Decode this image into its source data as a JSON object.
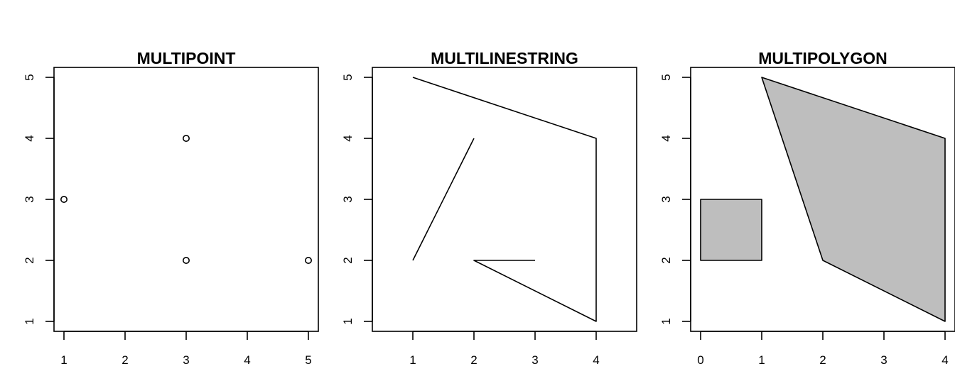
{
  "chart_data": [
    {
      "type": "scatter",
      "title": "MULTIPOINT",
      "xlim": [
        1,
        5
      ],
      "ylim": [
        1,
        5
      ],
      "xticks": [
        "1",
        "2",
        "3",
        "4",
        "5"
      ],
      "yticks": [
        "1",
        "2",
        "3",
        "4",
        "5"
      ],
      "points": [
        [
          1,
          3
        ],
        [
          3,
          4
        ],
        [
          3,
          2
        ],
        [
          5,
          2
        ]
      ]
    },
    {
      "type": "line",
      "title": "MULTILINESTRING",
      "xlim": [
        1,
        4
      ],
      "ylim": [
        1,
        5
      ],
      "xticks": [
        "1",
        "2",
        "3",
        "4"
      ],
      "yticks": [
        "1",
        "2",
        "3",
        "4",
        "5"
      ],
      "lines": [
        [
          [
            1,
            5
          ],
          [
            4,
            4
          ],
          [
            4,
            1
          ],
          [
            2,
            2
          ],
          [
            3,
            2
          ]
        ],
        [
          [
            1,
            2
          ],
          [
            2,
            4
          ]
        ]
      ]
    },
    {
      "type": "area",
      "title": "MULTIPOLYGON",
      "xlim": [
        0,
        4
      ],
      "ylim": [
        1,
        5
      ],
      "xticks": [
        "0",
        "1",
        "2",
        "3",
        "4"
      ],
      "yticks": [
        "1",
        "2",
        "3",
        "4",
        "5"
      ],
      "fill": "#bebebe",
      "polygons": [
        [
          [
            0,
            2
          ],
          [
            1,
            2
          ],
          [
            1,
            3
          ],
          [
            0,
            3
          ]
        ],
        [
          [
            1,
            5
          ],
          [
            4,
            4
          ],
          [
            4,
            1
          ],
          [
            2,
            2
          ]
        ]
      ]
    }
  ]
}
